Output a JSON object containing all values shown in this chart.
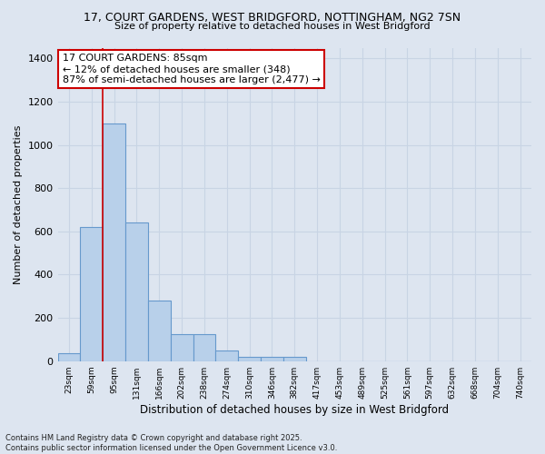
{
  "title_line1": "17, COURT GARDENS, WEST BRIDGFORD, NOTTINGHAM, NG2 7SN",
  "title_line2": "Size of property relative to detached houses in West Bridgford",
  "xlabel": "Distribution of detached houses by size in West Bridgford",
  "ylabel": "Number of detached properties",
  "categories": [
    "23sqm",
    "59sqm",
    "95sqm",
    "131sqm",
    "166sqm",
    "202sqm",
    "238sqm",
    "274sqm",
    "310sqm",
    "346sqm",
    "382sqm",
    "417sqm",
    "453sqm",
    "489sqm",
    "525sqm",
    "561sqm",
    "597sqm",
    "632sqm",
    "668sqm",
    "704sqm",
    "740sqm"
  ],
  "values": [
    35,
    620,
    1100,
    640,
    280,
    125,
    125,
    50,
    20,
    20,
    20,
    0,
    0,
    0,
    0,
    0,
    0,
    0,
    0,
    0,
    0
  ],
  "bar_color": "#b8d0ea",
  "bar_edge_color": "#6699cc",
  "vline_x": 1.5,
  "vline_color": "#cc0000",
  "annotation_text": "17 COURT GARDENS: 85sqm\n← 12% of detached houses are smaller (348)\n87% of semi-detached houses are larger (2,477) →",
  "annotation_box_color": "#ffffff",
  "annotation_edge_color": "#cc0000",
  "ylim": [
    0,
    1450
  ],
  "yticks": [
    0,
    200,
    400,
    600,
    800,
    1000,
    1200,
    1400
  ],
  "grid_color": "#c8d4e4",
  "bg_color": "#dde5f0",
  "footer": "Contains HM Land Registry data © Crown copyright and database right 2025.\nContains public sector information licensed under the Open Government Licence v3.0."
}
